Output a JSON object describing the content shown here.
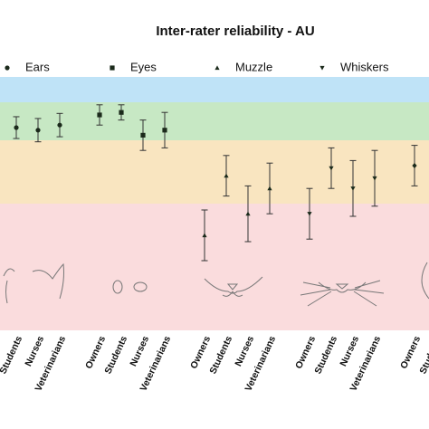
{
  "chart_data": {
    "type": "errorbar",
    "title": "Inter-rater reliability - AU",
    "ylim": [
      0,
      1
    ],
    "bands": [
      {
        "from": 0.9,
        "to": 1.0,
        "color": "#bfe3f7"
      },
      {
        "from": 0.75,
        "to": 0.9,
        "color": "#c7e8c4"
      },
      {
        "from": 0.5,
        "to": 0.75,
        "color": "#f9e5c0"
      },
      {
        "from": 0,
        "to": 0.5,
        "color": "#fadcdd"
      }
    ],
    "color": "#1b2a1b",
    "series": [
      {
        "name": "Ears",
        "marker": "circle",
        "categories": [
          "Students",
          "Nurses",
          "Veterinarians"
        ],
        "values": [
          0.8,
          0.79,
          0.81
        ],
        "errors": [
          0.043,
          0.046,
          0.046
        ]
      },
      {
        "name": "Eyes",
        "marker": "square",
        "categories": [
          "Owners",
          "Students",
          "Nurses",
          "Veterinarians"
        ],
        "values": [
          0.85,
          0.86,
          0.77,
          0.79
        ],
        "errors": [
          0.04,
          0.03,
          0.06,
          0.07
        ]
      },
      {
        "name": "Muzzle",
        "marker": "triangle-up",
        "categories": [
          "Owners",
          "Students",
          "Nurses",
          "Veterinarians"
        ],
        "values": [
          0.375,
          0.61,
          0.46,
          0.56
        ],
        "errors": [
          0.1,
          0.08,
          0.11,
          0.1
        ]
      },
      {
        "name": "Whiskers",
        "marker": "triangle-down",
        "categories": [
          "Owners",
          "Students",
          "Nurses",
          "Veterinarians"
        ],
        "values": [
          0.46,
          0.64,
          0.56,
          0.6
        ],
        "errors": [
          0.1,
          0.08,
          0.11,
          0.11
        ]
      },
      {
        "marker": "diamond",
        "categories": [
          "Owners",
          "Students"
        ],
        "values": [
          0.65,
          null
        ],
        "errors": [
          0.08,
          null
        ]
      }
    ]
  }
}
